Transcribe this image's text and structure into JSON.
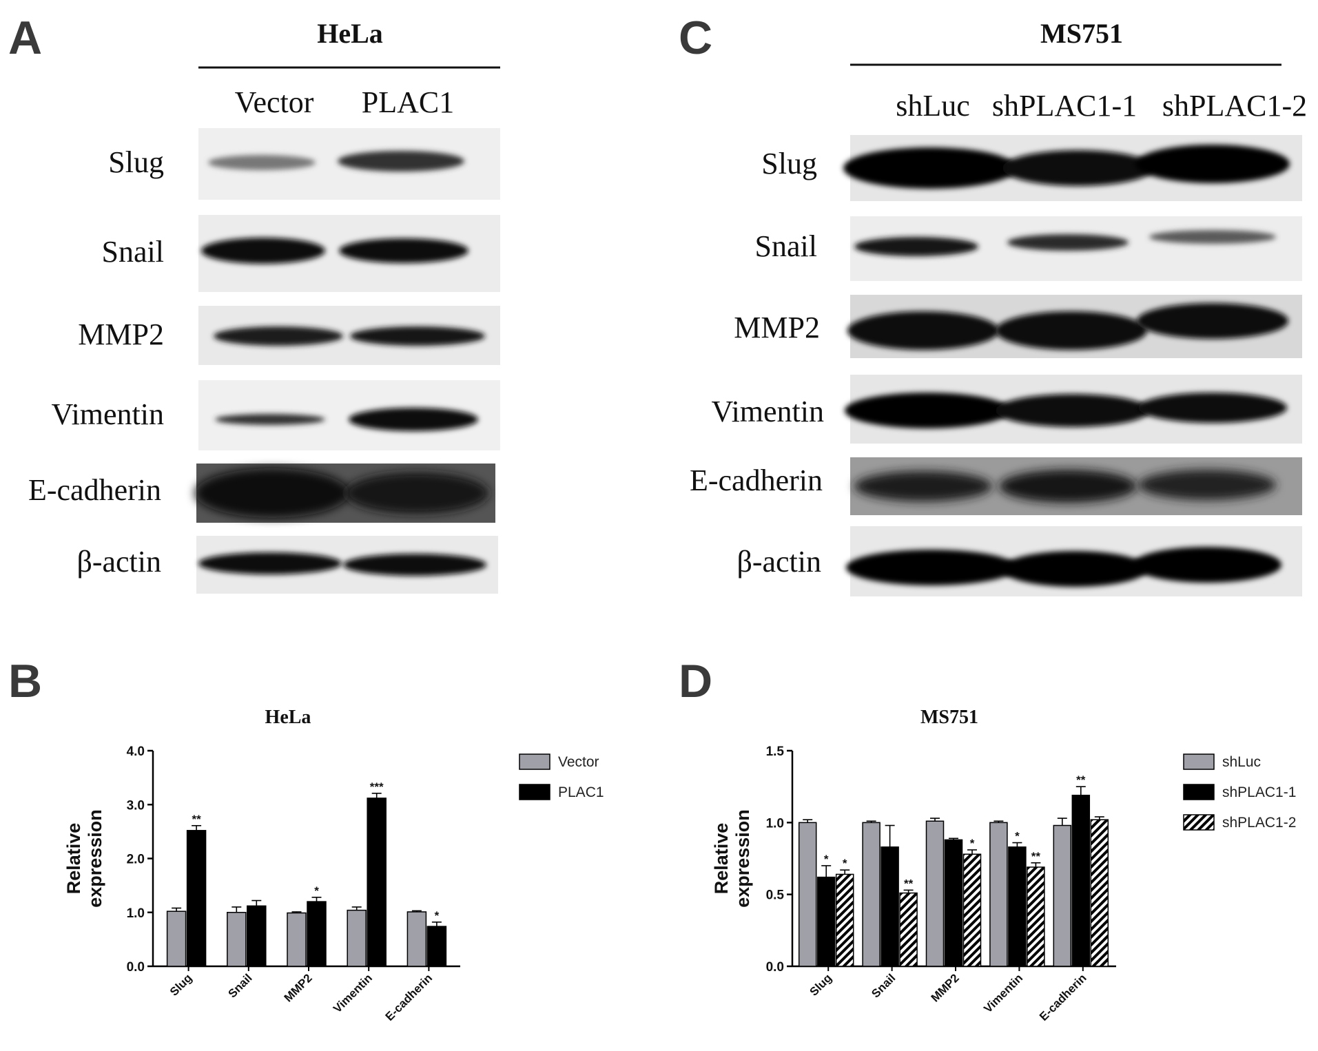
{
  "panels": {
    "A": "A",
    "B": "B",
    "C": "C",
    "D": "D"
  },
  "blot_A": {
    "title": "HeLa",
    "lanes": [
      "Vector",
      "PLAC1"
    ],
    "rows": [
      "Slug",
      "Snail",
      "MMP2",
      "Vimentin",
      "E-cadherin",
      "β-actin"
    ]
  },
  "blot_C": {
    "title": "MS751",
    "lanes": [
      "shLuc",
      "shPLAC1-1",
      "shPLAC1-2"
    ],
    "rows": [
      "Slug",
      "Snail",
      "MMP2",
      "Vimentin",
      "E-cadherin",
      "β-actin"
    ]
  },
  "chart_data": [
    {
      "type": "bar",
      "title": "HeLa",
      "ylabel": "Relative expression",
      "xlabel": "",
      "categories": [
        "Slug",
        "Snail",
        "MMP2",
        "Vimentin",
        "E-cadherin"
      ],
      "ylim": [
        0,
        4
      ],
      "yticks": [
        "0.0",
        "1.0",
        "2.0",
        "3.0",
        "4.0"
      ],
      "legend_position": "right",
      "series": [
        {
          "name": "Vector",
          "color": "#a0a0a8",
          "pattern": "solid",
          "values": [
            1.02,
            1.0,
            0.99,
            1.04,
            1.01
          ],
          "errors": [
            0.06,
            0.1,
            0.02,
            0.06,
            0.02
          ],
          "significance": [
            "",
            "",
            "",
            "",
            ""
          ]
        },
        {
          "name": "PLAC1",
          "color": "#000000",
          "pattern": "solid",
          "values": [
            2.52,
            1.12,
            1.2,
            3.12,
            0.74
          ],
          "errors": [
            0.09,
            0.1,
            0.08,
            0.09,
            0.08
          ],
          "significance": [
            "**",
            "",
            "*",
            "***",
            "*"
          ]
        }
      ]
    },
    {
      "type": "bar",
      "title": "MS751",
      "ylabel": "Relative expression",
      "xlabel": "",
      "categories": [
        "Slug",
        "Snail",
        "MMP2",
        "Vimentin",
        "E-cadherin"
      ],
      "ylim": [
        0,
        1.5
      ],
      "yticks": [
        "0.0",
        "0.5",
        "1.0",
        "1.5"
      ],
      "legend_position": "right",
      "series": [
        {
          "name": "shLuc",
          "color": "#a0a0a8",
          "pattern": "solid",
          "values": [
            1.0,
            1.0,
            1.01,
            1.0,
            0.98
          ],
          "errors": [
            0.02,
            0.01,
            0.02,
            0.01,
            0.05
          ],
          "significance": [
            "",
            "",
            "",
            "",
            ""
          ]
        },
        {
          "name": "shPLAC1-1",
          "color": "#000000",
          "pattern": "solid",
          "values": [
            0.62,
            0.83,
            0.88,
            0.83,
            1.19
          ],
          "errors": [
            0.08,
            0.15,
            0.01,
            0.03,
            0.06
          ],
          "significance": [
            "*",
            "",
            "",
            "*",
            "**"
          ]
        },
        {
          "name": "shPLAC1-2",
          "color": "#000000",
          "pattern": "hatch",
          "values": [
            0.64,
            0.51,
            0.78,
            0.69,
            1.02
          ],
          "errors": [
            0.03,
            0.02,
            0.03,
            0.03,
            0.02
          ],
          "significance": [
            "*",
            "**",
            "*",
            "**",
            ""
          ]
        }
      ]
    }
  ]
}
